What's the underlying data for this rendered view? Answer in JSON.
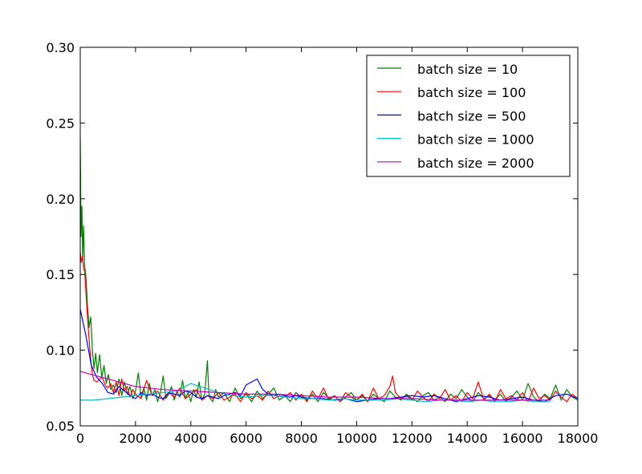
{
  "chart_data": {
    "type": "line",
    "title": "",
    "xlabel": "",
    "ylabel": "",
    "xlim": [
      0,
      18000
    ],
    "ylim": [
      0.05,
      0.3
    ],
    "xticks": [
      0,
      2000,
      4000,
      6000,
      8000,
      10000,
      12000,
      14000,
      16000,
      18000
    ],
    "xtick_labels": [
      "0",
      "2000",
      "4000",
      "6000",
      "8000",
      "10000",
      "12000",
      "14000",
      "16000",
      "18000"
    ],
    "yticks": [
      0.05,
      0.1,
      0.15,
      0.2,
      0.25,
      0.3
    ],
    "ytick_labels": [
      "0.05",
      "0.10",
      "0.15",
      "0.20",
      "0.25",
      "0.30"
    ],
    "grid": false,
    "legend_position": "top-right",
    "series": [
      {
        "name": "batch size = 10",
        "color": "#008000",
        "x": [
          0,
          30,
          60,
          90,
          120,
          160,
          200,
          260,
          320,
          380,
          440,
          500,
          560,
          620,
          700,
          780,
          860,
          940,
          1020,
          1100,
          1200,
          1300,
          1400,
          1500,
          1600,
          1700,
          1800,
          1900,
          2000,
          2100,
          2200,
          2300,
          2400,
          2500,
          2600,
          2700,
          2800,
          2900,
          3000,
          3100,
          3200,
          3300,
          3400,
          3500,
          3600,
          3700,
          3800,
          3900,
          4000,
          4100,
          4200,
          4300,
          4400,
          4500,
          4600,
          4650,
          4700,
          4800,
          4900,
          5000,
          5200,
          5400,
          5600,
          5800,
          6000,
          6200,
          6400,
          6600,
          6800,
          7000,
          7200,
          7400,
          7600,
          7800,
          8000,
          8200,
          8400,
          8600,
          8800,
          9000,
          9200,
          9400,
          9600,
          9800,
          10000,
          10200,
          10400,
          10600,
          10800,
          11000,
          11200,
          11400,
          11600,
          11800,
          12000,
          12200,
          12400,
          12600,
          12800,
          13000,
          13200,
          13400,
          13600,
          13800,
          14000,
          14200,
          14400,
          14600,
          14800,
          15000,
          15200,
          15400,
          15600,
          15800,
          16000,
          16200,
          16400,
          16600,
          16800,
          17000,
          17200,
          17400,
          17600,
          17800,
          18000
        ],
        "y": [
          0.24,
          0.175,
          0.195,
          0.16,
          0.182,
          0.155,
          0.15,
          0.13,
          0.115,
          0.122,
          0.1,
          0.088,
          0.098,
          0.085,
          0.097,
          0.082,
          0.09,
          0.078,
          0.084,
          0.074,
          0.077,
          0.072,
          0.081,
          0.07,
          0.079,
          0.071,
          0.076,
          0.068,
          0.073,
          0.085,
          0.069,
          0.075,
          0.067,
          0.078,
          0.07,
          0.074,
          0.066,
          0.072,
          0.083,
          0.068,
          0.071,
          0.076,
          0.067,
          0.073,
          0.069,
          0.08,
          0.068,
          0.072,
          0.066,
          0.074,
          0.069,
          0.079,
          0.067,
          0.071,
          0.093,
          0.072,
          0.068,
          0.066,
          0.074,
          0.069,
          0.072,
          0.066,
          0.075,
          0.068,
          0.071,
          0.066,
          0.073,
          0.068,
          0.071,
          0.075,
          0.067,
          0.07,
          0.066,
          0.072,
          0.069,
          0.067,
          0.071,
          0.066,
          0.072,
          0.068,
          0.07,
          0.066,
          0.069,
          0.072,
          0.067,
          0.07,
          0.066,
          0.071,
          0.068,
          0.066,
          0.073,
          0.069,
          0.067,
          0.071,
          0.068,
          0.066,
          0.07,
          0.072,
          0.067,
          0.069,
          0.066,
          0.071,
          0.068,
          0.074,
          0.069,
          0.066,
          0.072,
          0.068,
          0.07,
          0.067,
          0.071,
          0.066,
          0.069,
          0.073,
          0.067,
          0.078,
          0.069,
          0.066,
          0.071,
          0.068,
          0.077,
          0.067,
          0.074,
          0.069,
          0.067
        ]
      },
      {
        "name": "batch size = 100",
        "color": "#ff0000",
        "x": [
          0,
          40,
          80,
          120,
          160,
          200,
          250,
          300,
          350,
          400,
          450,
          500,
          600,
          700,
          800,
          900,
          1000,
          1100,
          1200,
          1300,
          1400,
          1500,
          1600,
          1700,
          1800,
          1900,
          2000,
          2200,
          2400,
          2600,
          2800,
          3000,
          3200,
          3400,
          3600,
          3800,
          4000,
          4200,
          4400,
          4600,
          4800,
          5000,
          5200,
          5400,
          5600,
          5800,
          6000,
          6200,
          6400,
          6600,
          6800,
          7000,
          7200,
          7400,
          7600,
          7800,
          8000,
          8200,
          8400,
          8600,
          8800,
          9000,
          9200,
          9400,
          9600,
          9800,
          10000,
          10200,
          10400,
          10600,
          10800,
          11000,
          11200,
          11300,
          11400,
          11600,
          11800,
          12000,
          12200,
          12400,
          12600,
          12800,
          13000,
          13200,
          13400,
          13600,
          13800,
          14000,
          14200,
          14400,
          14600,
          14800,
          15000,
          15200,
          15400,
          15600,
          15800,
          16000,
          16200,
          16400,
          16600,
          16800,
          17000,
          17200,
          17400,
          17600,
          17800,
          18000
        ],
        "y": [
          0.165,
          0.158,
          0.162,
          0.154,
          0.152,
          0.14,
          0.125,
          0.112,
          0.1,
          0.09,
          0.083,
          0.08,
          0.079,
          0.081,
          0.082,
          0.077,
          0.075,
          0.078,
          0.072,
          0.079,
          0.07,
          0.081,
          0.073,
          0.076,
          0.069,
          0.074,
          0.071,
          0.068,
          0.08,
          0.07,
          0.073,
          0.067,
          0.072,
          0.069,
          0.075,
          0.068,
          0.071,
          0.074,
          0.067,
          0.07,
          0.068,
          0.072,
          0.067,
          0.069,
          0.071,
          0.066,
          0.072,
          0.068,
          0.07,
          0.067,
          0.073,
          0.068,
          0.07,
          0.069,
          0.072,
          0.067,
          0.071,
          0.066,
          0.073,
          0.068,
          0.075,
          0.067,
          0.07,
          0.066,
          0.072,
          0.069,
          0.067,
          0.071,
          0.066,
          0.075,
          0.068,
          0.07,
          0.076,
          0.083,
          0.072,
          0.068,
          0.07,
          0.067,
          0.073,
          0.069,
          0.066,
          0.071,
          0.068,
          0.074,
          0.067,
          0.07,
          0.066,
          0.072,
          0.068,
          0.079,
          0.067,
          0.071,
          0.066,
          0.074,
          0.068,
          0.07,
          0.067,
          0.072,
          0.066,
          0.075,
          0.068,
          0.07,
          0.067,
          0.073,
          0.069,
          0.066,
          0.071,
          0.068
        ]
      },
      {
        "name": "batch size = 500",
        "color": "#0000ff",
        "x": [
          0,
          200,
          400,
          600,
          800,
          1000,
          1200,
          1400,
          1600,
          1800,
          2000,
          2200,
          2400,
          2600,
          2800,
          3000,
          3200,
          3400,
          3600,
          3800,
          4000,
          4200,
          4400,
          4600,
          4800,
          5000,
          5200,
          5400,
          5600,
          5800,
          6000,
          6200,
          6400,
          6600,
          6800,
          7000,
          7200,
          7400,
          7600,
          7800,
          8000,
          8400,
          8800,
          9200,
          9600,
          10000,
          10400,
          10800,
          11200,
          11600,
          12000,
          12400,
          12800,
          13200,
          13600,
          14000,
          14400,
          14800,
          15200,
          15600,
          16000,
          16400,
          16800,
          17200,
          17600,
          18000
        ],
        "y": [
          0.127,
          0.11,
          0.09,
          0.082,
          0.078,
          0.072,
          0.071,
          0.076,
          0.073,
          0.07,
          0.068,
          0.072,
          0.07,
          0.071,
          0.069,
          0.068,
          0.072,
          0.071,
          0.07,
          0.073,
          0.072,
          0.069,
          0.068,
          0.07,
          0.069,
          0.068,
          0.07,
          0.071,
          0.072,
          0.07,
          0.077,
          0.079,
          0.081,
          0.074,
          0.071,
          0.07,
          0.071,
          0.07,
          0.069,
          0.07,
          0.069,
          0.068,
          0.068,
          0.067,
          0.068,
          0.066,
          0.067,
          0.068,
          0.068,
          0.069,
          0.07,
          0.069,
          0.07,
          0.068,
          0.066,
          0.068,
          0.07,
          0.069,
          0.067,
          0.068,
          0.069,
          0.067,
          0.066,
          0.07,
          0.071,
          0.068
        ]
      },
      {
        "name": "batch size = 1000",
        "color": "#00bfbf",
        "x": [
          0,
          500,
          1000,
          1500,
          2000,
          2500,
          3000,
          3500,
          4000,
          4500,
          5000,
          5500,
          6000,
          6500,
          7000,
          7500,
          8000,
          8500,
          9000,
          9500,
          10000,
          10500,
          11000,
          11500,
          12000,
          12500,
          13000,
          13500,
          14000,
          14500,
          15000,
          15500,
          16000,
          16500,
          17000
        ],
        "y": [
          0.067,
          0.067,
          0.068,
          0.069,
          0.07,
          0.071,
          0.072,
          0.073,
          0.078,
          0.075,
          0.072,
          0.07,
          0.069,
          0.07,
          0.07,
          0.069,
          0.068,
          0.068,
          0.067,
          0.068,
          0.067,
          0.067,
          0.067,
          0.068,
          0.067,
          0.066,
          0.067,
          0.067,
          0.066,
          0.067,
          0.066,
          0.066,
          0.067,
          0.066,
          0.066
        ]
      },
      {
        "name": "batch size = 2000",
        "color": "#bf00bf",
        "x": [
          0,
          1000,
          2000,
          3000,
          4000,
          5000,
          6000,
          7000,
          8000,
          9000,
          10000,
          11000,
          12000,
          13000,
          14000,
          15000,
          16000,
          17000
        ],
        "y": [
          0.086,
          0.081,
          0.076,
          0.074,
          0.073,
          0.072,
          0.071,
          0.071,
          0.07,
          0.069,
          0.069,
          0.068,
          0.068,
          0.067,
          0.067,
          0.067,
          0.067,
          0.067
        ]
      }
    ]
  }
}
